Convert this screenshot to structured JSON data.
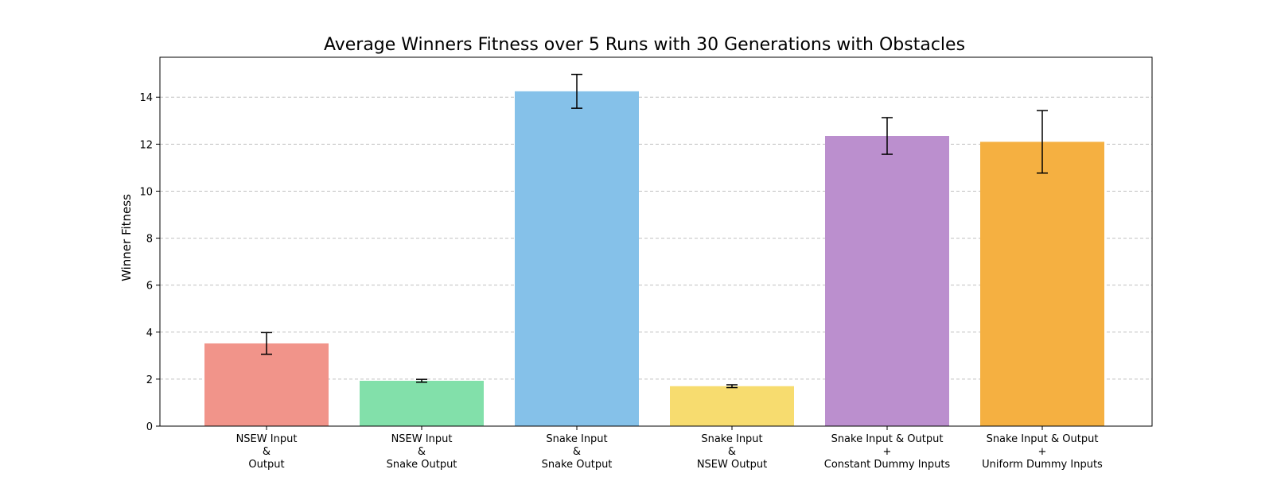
{
  "chart_data": {
    "type": "bar",
    "title": "Average Winners Fitness over 5 Runs with 30 Generations with Obstacles",
    "xlabel": "",
    "ylabel": "Winner Fitness",
    "ylim": [
      0,
      15.7
    ],
    "yticks": [
      0,
      2,
      4,
      6,
      8,
      10,
      12,
      14
    ],
    "grid": "y-dashed",
    "categories": [
      [
        "NSEW Input",
        "&",
        "Output"
      ],
      [
        "NSEW Input",
        "&",
        "Snake Output"
      ],
      [
        "Snake Input",
        "&",
        "Snake Output"
      ],
      [
        "Snake Input",
        "&",
        "NSEW Output"
      ],
      [
        "Snake Input & Output",
        "+",
        "Constant Dummy Inputs"
      ],
      [
        "Snake Input & Output",
        "+",
        "Uniform Dummy Inputs"
      ]
    ],
    "values": [
      3.52,
      1.93,
      14.25,
      1.7,
      12.35,
      12.1
    ],
    "errors": [
      0.46,
      0.06,
      0.72,
      0.06,
      0.78,
      1.33
    ],
    "colors": [
      "#f1948a",
      "#82e0aa",
      "#85c1e9",
      "#f7dc6f",
      "#bb8fce",
      "#f5b041"
    ]
  }
}
